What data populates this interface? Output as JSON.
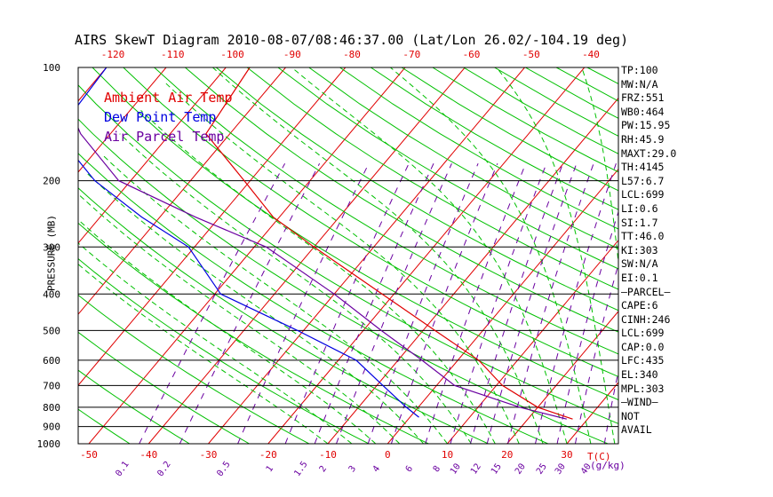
{
  "title": "AIRS SkewT Diagram 2010-08-07/08:46:37.00 (Lat/Lon 26.02/-104.19 deg)",
  "legend": {
    "ambient": "Ambient Air Temp",
    "dew": "Dew Point Temp",
    "parcel": "Air Parcel Temp"
  },
  "ylabel": "PRESSURE (MB)",
  "t_label": "T(C)",
  "mr_label": "g/kg",
  "stats": [
    "TP:100",
    "MW:N/A",
    "FRZ:551",
    "WB0:464",
    "PW:15.95",
    "RH:45.9",
    "MAXT:29.0",
    "TH:4145",
    "L57:6.7",
    "LCL:699",
    "LI:0.6",
    "SI:1.7",
    "TT:46.0",
    "KI:303",
    "SW:N/A",
    "EI:0.1",
    "—PARCEL—",
    "CAPE:6",
    "CINH:246",
    "LCL:699",
    "CAP:0.0",
    "LFC:435",
    "EL:340",
    "MPL:303",
    "—WIND—",
    "NOT",
    "AVAIL"
  ],
  "colors": {
    "ambient": "#e00000",
    "dew": "#0000e0",
    "parcel": "#6a00a0",
    "isotherm": "#e00000",
    "dry_adiabat": "#00c000",
    "moist_adiabat": "#00c000",
    "mixing_ratio": "#6a00a0",
    "pressure_line": "#000000"
  },
  "chart_data": {
    "type": "line",
    "title": "AIRS SkewT Diagram 2010-08-07/08:46:37.00 (Lat/Lon 26.02/-104.19 deg)",
    "ylabel": "PRESSURE (MB)",
    "y_scale": "log",
    "ylim": [
      1000,
      100
    ],
    "pressure_ticks": [
      100,
      200,
      300,
      400,
      500,
      600,
      700,
      800,
      900,
      1000
    ],
    "top_temperature_ticks": [
      -120,
      -110,
      -100,
      -90,
      -80,
      -70,
      -60,
      -50,
      -40
    ],
    "bottom_temperature_ticks": [
      -50,
      -40,
      -30,
      -20,
      -10,
      0,
      10,
      20,
      30
    ],
    "mixing_ratio_ticks": [
      "0.1",
      "0.2",
      "0.5",
      "1",
      "1.5",
      "2",
      "3",
      "4",
      "6",
      "8",
      "10",
      "12",
      "15",
      "20",
      "25",
      "30",
      "40"
    ],
    "grid": true,
    "series": [
      {
        "name": "Ambient Air Temp",
        "points": [
          [
            100,
            -76
          ],
          [
            150,
            -74
          ],
          [
            200,
            -61
          ],
          [
            250,
            -51
          ],
          [
            300,
            -40
          ],
          [
            400,
            -22
          ],
          [
            500,
            -8
          ],
          [
            600,
            3.5
          ],
          [
            700,
            11
          ],
          [
            800,
            20
          ],
          [
            860,
            27.5
          ]
        ]
      },
      {
        "name": "Dew Point Temp",
        "points": [
          [
            100,
            -100
          ],
          [
            150,
            -99
          ],
          [
            200,
            -86
          ],
          [
            250,
            -73
          ],
          [
            300,
            -61
          ],
          [
            400,
            -49
          ],
          [
            500,
            -31
          ],
          [
            600,
            -17
          ],
          [
            700,
            -9
          ],
          [
            800,
            -2
          ],
          [
            850,
            1.5
          ]
        ]
      },
      {
        "name": "Air Parcel Temp",
        "points": [
          [
            100,
            -109
          ],
          [
            150,
            -95
          ],
          [
            200,
            -82
          ],
          [
            250,
            -64
          ],
          [
            300,
            -48
          ],
          [
            400,
            -30
          ],
          [
            500,
            -17
          ],
          [
            600,
            -6
          ],
          [
            700,
            3
          ],
          [
            800,
            17
          ],
          [
            860,
            26.5
          ]
        ]
      }
    ]
  }
}
